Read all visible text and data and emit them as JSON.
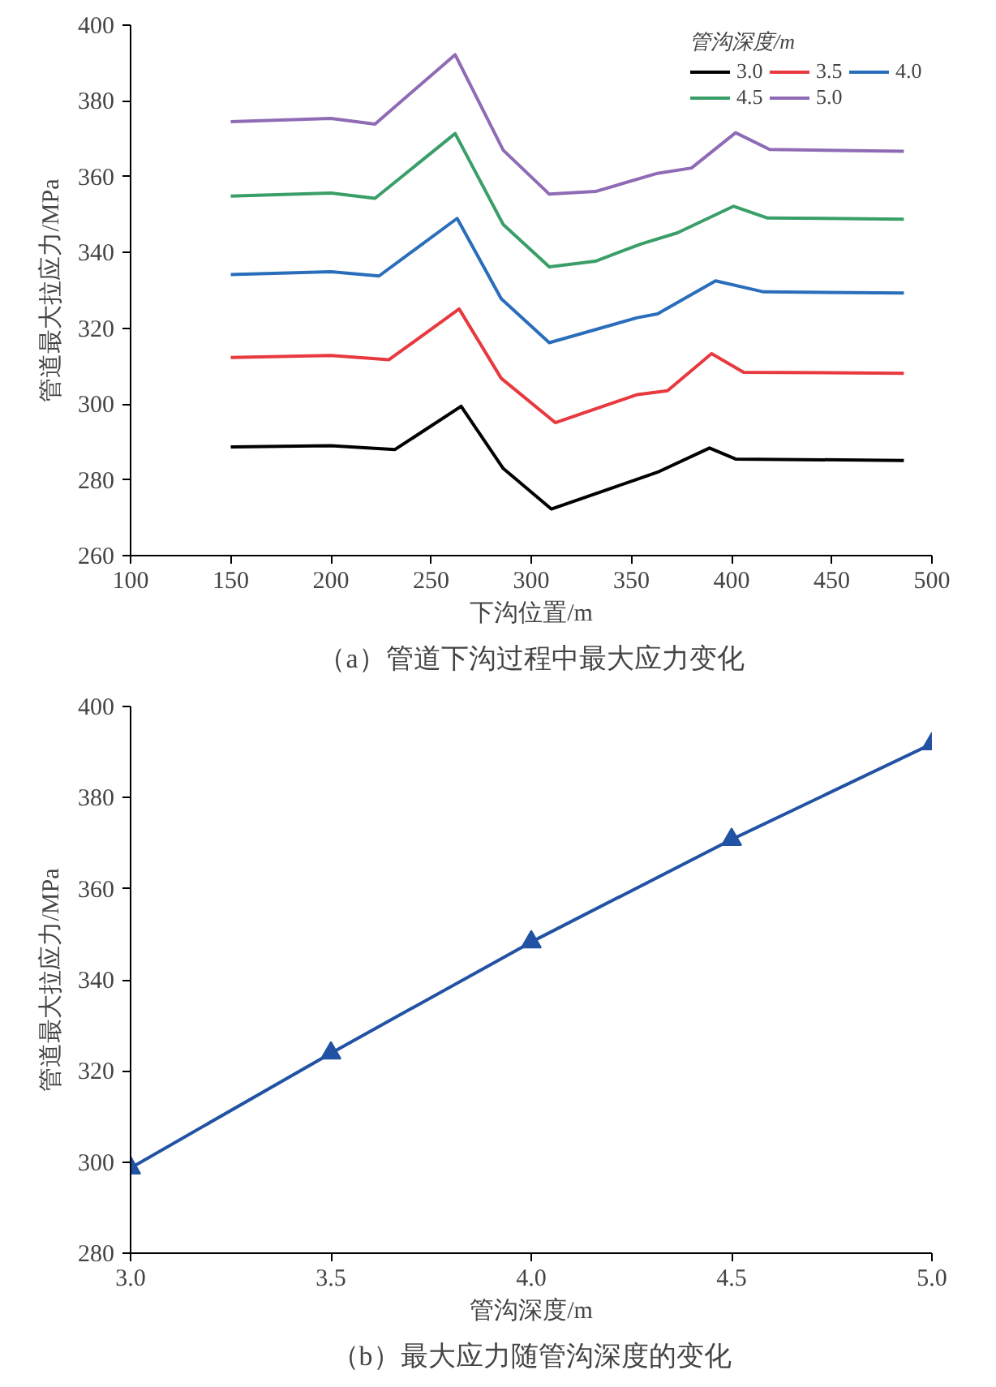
{
  "chart_data": [
    {
      "type": "line",
      "xlabel": "下沟位置/m",
      "ylabel": "管道最大拉应力/MPa",
      "legend_title": "管沟深度/m",
      "annotations": [
        "（a）管道下沟过程中最大应力变化"
      ],
      "xlim": [
        100,
        500
      ],
      "ylim": [
        260,
        400
      ],
      "xticks": [
        100,
        150,
        200,
        250,
        300,
        350,
        400,
        450,
        500
      ],
      "yticks": [
        260,
        280,
        300,
        320,
        340,
        360,
        380,
        400
      ],
      "grid": false,
      "legend": "top right",
      "marker": "none",
      "line_style": "solid",
      "series": [
        {
          "name": "3.0",
          "color": "#000000",
          "x": [
            150,
            200,
            232,
            265,
            286,
            310,
            352,
            363,
            389,
            402,
            486
          ],
          "values": [
            288.7,
            289,
            288,
            299.4,
            283,
            272.3,
            280,
            282,
            288.4,
            285.5,
            285.1
          ]
        },
        {
          "name": "3.5",
          "color": "#e8393f",
          "x": [
            150,
            200,
            229,
            264,
            285,
            312,
            353,
            368,
            390,
            406,
            486
          ],
          "values": [
            312.3,
            312.8,
            311.7,
            325.1,
            306.8,
            295.1,
            302.5,
            303.5,
            313.3,
            308.4,
            308.1
          ]
        },
        {
          "name": "4.0",
          "color": "#2a6ebb",
          "x": [
            150,
            200,
            224,
            263,
            285,
            309,
            353,
            363,
            392,
            416,
            486
          ],
          "values": [
            334.2,
            334.9,
            333.8,
            349,
            327.8,
            316.2,
            322.8,
            323.8,
            332.5,
            329.6,
            329.3
          ]
        },
        {
          "name": "4.5",
          "color": "#3a9e68",
          "x": [
            150,
            200,
            222,
            262,
            286,
            309,
            332,
            355,
            373,
            401,
            418,
            486
          ],
          "values": [
            354.9,
            355.7,
            354.3,
            371.4,
            347.4,
            336.2,
            337.7,
            342.3,
            345.2,
            352.2,
            349.1,
            348.8
          ]
        },
        {
          "name": "5.0",
          "color": "#8f6bb5",
          "x": [
            150,
            200,
            222,
            262,
            286,
            309,
            332,
            363,
            380,
            402,
            419,
            486
          ],
          "values": [
            374.5,
            375.4,
            373.9,
            392.2,
            367,
            355.4,
            356.1,
            360.9,
            362.3,
            371.6,
            367.2,
            366.7
          ]
        }
      ]
    },
    {
      "type": "line",
      "xlabel": "管沟深度/m",
      "ylabel": "管道最大拉应力/MPa",
      "annotations": [
        "（b）最大应力随管沟深度的变化"
      ],
      "xlim": [
        3.0,
        5.0
      ],
      "ylim": [
        280,
        400
      ],
      "xticks": [
        {
          "value": 3,
          "label": "3.0"
        },
        {
          "value": 3.5,
          "label": "3.5"
        },
        {
          "value": 4,
          "label": "4.0"
        },
        {
          "value": 4.5,
          "label": "4.5"
        },
        {
          "value": 5,
          "label": "5.0"
        }
      ],
      "yticks": [
        280,
        300,
        320,
        340,
        360,
        380,
        400
      ],
      "grid": false,
      "marker": "triangle",
      "line_style": "solid",
      "series": [
        {
          "color": "#2152a3",
          "x": [
            3.0,
            3.5,
            4.0,
            4.5,
            5.0
          ],
          "values": [
            298.7,
            323.9,
            348.3,
            370.8,
            391.8
          ]
        }
      ]
    }
  ]
}
